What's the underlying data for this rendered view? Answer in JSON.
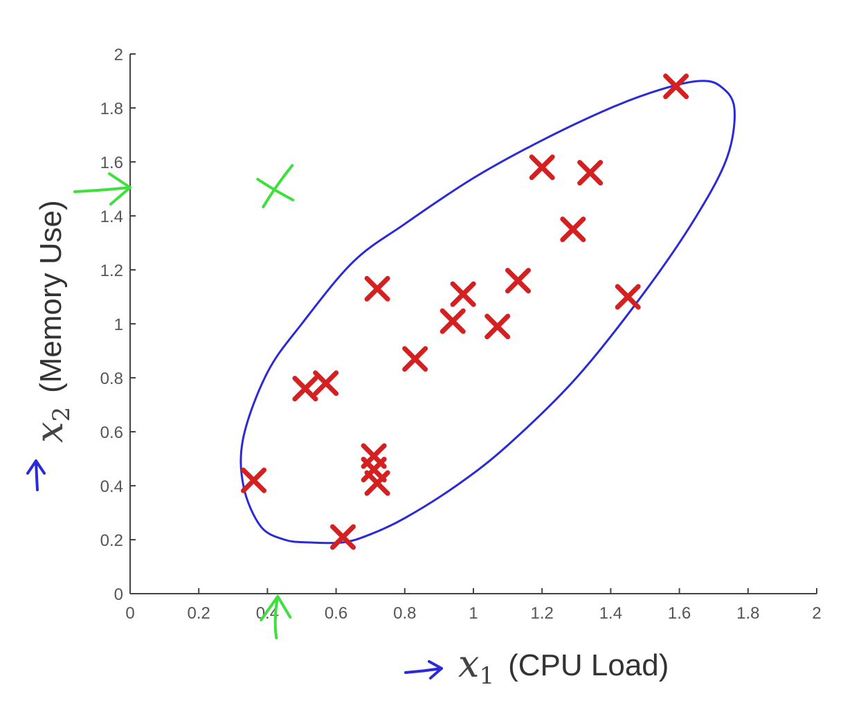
{
  "chart_data": {
    "type": "scatter",
    "xlim": [
      0,
      2
    ],
    "ylim": [
      0,
      2
    ],
    "x_ticks": [
      "0",
      "0.2",
      "0.4",
      "0.6",
      "0.8",
      "1",
      "1.2",
      "1.4",
      "1.6",
      "1.8",
      "2"
    ],
    "y_ticks": [
      "0",
      "0.2",
      "0.4",
      "0.6",
      "0.8",
      "1",
      "1.2",
      "1.4",
      "1.6",
      "1.8",
      "2"
    ],
    "xlabel": {
      "var": "x",
      "sub": "1",
      "text": "(CPU Load)"
    },
    "ylabel": {
      "var": "x",
      "sub": "2",
      "text": "(Memory Use)"
    },
    "grid": false,
    "series": [
      {
        "marker": "x",
        "color": "#d42020",
        "points": [
          [
            0.36,
            0.42
          ],
          [
            0.51,
            0.76
          ],
          [
            0.57,
            0.78
          ],
          [
            0.62,
            0.21
          ],
          [
            0.71,
            0.51
          ],
          [
            0.71,
            0.46
          ],
          [
            0.72,
            0.41
          ],
          [
            0.72,
            1.13
          ],
          [
            0.83,
            0.87
          ],
          [
            0.94,
            1.01
          ],
          [
            0.97,
            1.11
          ],
          [
            1.07,
            0.99
          ],
          [
            1.13,
            1.16
          ],
          [
            1.2,
            1.58
          ],
          [
            1.29,
            1.35
          ],
          [
            1.34,
            1.56
          ],
          [
            1.45,
            1.1
          ],
          [
            1.59,
            1.88
          ]
        ]
      },
      {
        "marker": "x",
        "color": "#3ee03e",
        "points": [
          [
            0.42,
            1.5
          ]
        ]
      }
    ],
    "annotations": {
      "boundary_color": "#2a2ad8",
      "boundary": [
        [
          0.62,
          0.19
        ],
        [
          0.7,
          0.22
        ],
        [
          0.8,
          0.28
        ],
        [
          0.95,
          0.4
        ],
        [
          1.1,
          0.55
        ],
        [
          1.3,
          0.8
        ],
        [
          1.5,
          1.12
        ],
        [
          1.65,
          1.4
        ],
        [
          1.74,
          1.62
        ],
        [
          1.76,
          1.8
        ],
        [
          1.72,
          1.88
        ],
        [
          1.66,
          1.9
        ],
        [
          1.55,
          1.87
        ],
        [
          1.4,
          1.8
        ],
        [
          1.2,
          1.68
        ],
        [
          1.0,
          1.54
        ],
        [
          0.8,
          1.37
        ],
        [
          0.65,
          1.23
        ],
        [
          0.5,
          1.0
        ],
        [
          0.4,
          0.82
        ],
        [
          0.33,
          0.58
        ],
        [
          0.33,
          0.4
        ],
        [
          0.38,
          0.25
        ],
        [
          0.45,
          0.2
        ],
        [
          0.52,
          0.19
        ]
      ],
      "marker_color": "#3ee03e",
      "x_marker": 0.43,
      "y_marker": 1.5,
      "axis_arrow_color": "#2a2ad8"
    }
  }
}
